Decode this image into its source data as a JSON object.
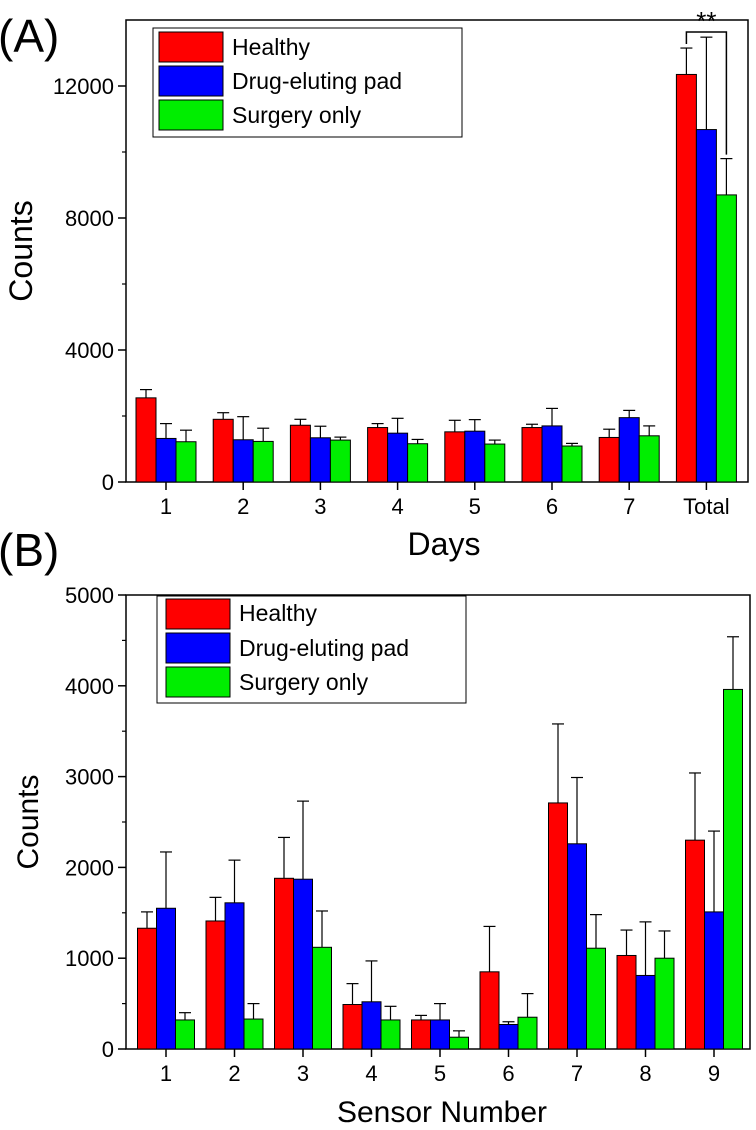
{
  "chart_data": [
    {
      "type": "bar",
      "panel_label": "(A)",
      "xlabel": "Days",
      "ylabel": "Counts",
      "ylim": [
        0,
        14000
      ],
      "yticks": [
        "0",
        "4000",
        "8000",
        "12000"
      ],
      "categories": [
        "1",
        "2",
        "3",
        "4",
        "5",
        "6",
        "7",
        "Total"
      ],
      "legend_position": "top-left",
      "series": [
        {
          "name": "Healthy",
          "color": "#ff0000",
          "values": [
            2550,
            1900,
            1720,
            1650,
            1520,
            1650,
            1350,
            12350
          ],
          "errors": [
            250,
            200,
            180,
            120,
            350,
            100,
            250,
            800
          ]
        },
        {
          "name": "Drug-eluting pad",
          "color": "#0000ff",
          "values": [
            1320,
            1280,
            1340,
            1480,
            1540,
            1700,
            1950,
            10680
          ],
          "errors": [
            450,
            700,
            350,
            450,
            350,
            530,
            220,
            2800
          ]
        },
        {
          "name": "Surgery only",
          "color": "#00ee00",
          "values": [
            1220,
            1230,
            1270,
            1160,
            1150,
            1090,
            1400,
            8700
          ],
          "errors": [
            350,
            400,
            90,
            130,
            120,
            80,
            300,
            1100
          ]
        }
      ],
      "annotation": {
        "text": "**",
        "between": [
          "Healthy",
          "Surgery only"
        ],
        "category": "Total"
      }
    },
    {
      "type": "bar",
      "panel_label": "(B)",
      "xlabel": "Sensor Number",
      "ylabel": "Counts",
      "ylim": [
        0,
        5000
      ],
      "yticks": [
        "0",
        "1000",
        "2000",
        "3000",
        "4000",
        "5000"
      ],
      "categories": [
        "1",
        "2",
        "3",
        "4",
        "5",
        "6",
        "7",
        "8",
        "9"
      ],
      "legend_position": "top-left",
      "series": [
        {
          "name": "Healthy",
          "color": "#ff0000",
          "values": [
            1330,
            1410,
            1880,
            490,
            320,
            850,
            2710,
            1030,
            2300
          ],
          "errors": [
            180,
            260,
            450,
            230,
            50,
            500,
            870,
            280,
            740
          ]
        },
        {
          "name": "Drug-eluting pad",
          "color": "#0000ff",
          "values": [
            1550,
            1610,
            1870,
            520,
            320,
            270,
            2260,
            810,
            1510
          ],
          "errors": [
            620,
            470,
            860,
            450,
            180,
            30,
            730,
            590,
            890
          ]
        },
        {
          "name": "Surgery only",
          "color": "#00ee00",
          "values": [
            320,
            330,
            1120,
            320,
            130,
            350,
            1110,
            1000,
            3960
          ],
          "errors": [
            80,
            170,
            400,
            150,
            70,
            260,
            370,
            300,
            580
          ]
        }
      ]
    }
  ]
}
